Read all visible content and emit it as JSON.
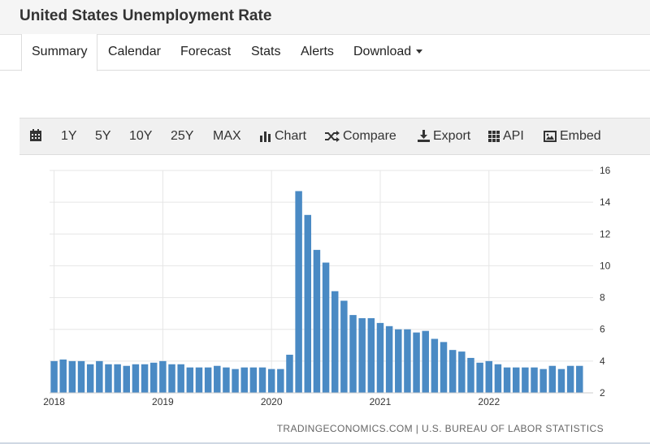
{
  "page": {
    "title": "United States Unemployment Rate"
  },
  "tabs": [
    {
      "label": "Summary",
      "active": true
    },
    {
      "label": "Calendar"
    },
    {
      "label": "Forecast"
    },
    {
      "label": "Stats"
    },
    {
      "label": "Alerts"
    },
    {
      "label": "Download"
    }
  ],
  "toolbar": {
    "range_1y": "1Y",
    "range_5y": "5Y",
    "range_10y": "10Y",
    "range_25y": "25Y",
    "range_max": "MAX",
    "chart": "Chart",
    "compare": "Compare",
    "export": "Export",
    "api": "API",
    "embed": "Embed",
    "icons": [
      "calendar-icon",
      "bar-chart-icon",
      "shuffle-icon",
      "download-icon",
      "grid-icon",
      "image-icon"
    ]
  },
  "colors": {
    "bar": "#4a8ac4",
    "grid": "#e6e6e6",
    "text": "#333333"
  },
  "chart_data": {
    "type": "bar",
    "title": "",
    "xlabel": "",
    "ylabel": "",
    "ylim": [
      2,
      16
    ],
    "yticks": [
      2,
      4,
      6,
      8,
      10,
      12,
      14,
      16
    ],
    "x_tick_labels": [
      "2018",
      "2019",
      "2020",
      "2021",
      "2022"
    ],
    "grid": true,
    "y_axis_side": "right",
    "source": "TRADINGECONOMICS.COM | U.S. BUREAU OF LABOR STATISTICS",
    "categories": [
      "2018-01",
      "2018-02",
      "2018-03",
      "2018-04",
      "2018-05",
      "2018-06",
      "2018-07",
      "2018-08",
      "2018-09",
      "2018-10",
      "2018-11",
      "2018-12",
      "2019-01",
      "2019-02",
      "2019-03",
      "2019-04",
      "2019-05",
      "2019-06",
      "2019-07",
      "2019-08",
      "2019-09",
      "2019-10",
      "2019-11",
      "2019-12",
      "2020-01",
      "2020-02",
      "2020-03",
      "2020-04",
      "2020-05",
      "2020-06",
      "2020-07",
      "2020-08",
      "2020-09",
      "2020-10",
      "2020-11",
      "2020-12",
      "2021-01",
      "2021-02",
      "2021-03",
      "2021-04",
      "2021-05",
      "2021-06",
      "2021-07",
      "2021-08",
      "2021-09",
      "2021-10",
      "2021-11",
      "2021-12",
      "2022-01",
      "2022-02",
      "2022-03",
      "2022-04",
      "2022-05",
      "2022-06",
      "2022-07",
      "2022-08",
      "2022-09",
      "2022-10",
      "2022-11",
      "2022-12"
    ],
    "values": [
      4.0,
      4.1,
      4.0,
      4.0,
      3.8,
      4.0,
      3.8,
      3.8,
      3.7,
      3.8,
      3.8,
      3.9,
      4.0,
      3.8,
      3.8,
      3.6,
      3.6,
      3.6,
      3.7,
      3.6,
      3.5,
      3.6,
      3.6,
      3.6,
      3.5,
      3.5,
      4.4,
      14.7,
      13.2,
      11.0,
      10.2,
      8.4,
      7.8,
      6.9,
      6.7,
      6.7,
      6.4,
      6.2,
      6.0,
      6.0,
      5.8,
      5.9,
      5.4,
      5.2,
      4.7,
      4.6,
      4.2,
      3.9,
      4.0,
      3.8,
      3.6,
      3.6,
      3.6,
      3.6,
      3.5,
      3.7,
      3.5,
      3.7,
      3.7,
      null
    ]
  }
}
